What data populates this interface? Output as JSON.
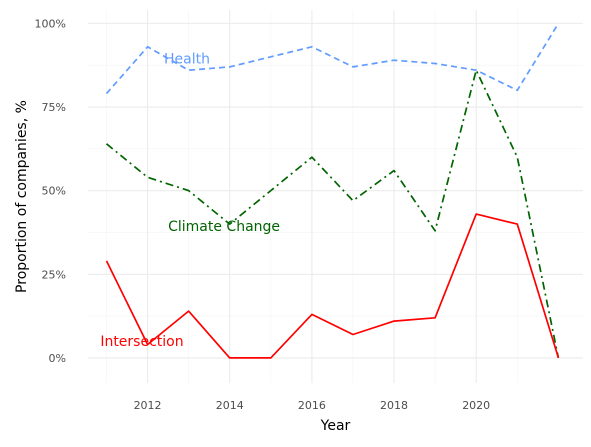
{
  "chart_data": {
    "type": "line",
    "title": "",
    "xlabel": "Year",
    "ylabel": "Proportion of companies, %",
    "xlim": [
      2010.55,
      2022.6
    ],
    "ylim": [
      -0.075,
      1.04
    ],
    "x_ticks": [
      2012,
      2014,
      2016,
      2018,
      2020
    ],
    "x_tick_labels": [
      "2012",
      "2014",
      "2016",
      "2018",
      "2020"
    ],
    "y_ticks": [
      0,
      0.25,
      0.5,
      0.75,
      1
    ],
    "y_tick_labels": [
      "0%",
      "25%",
      "50%",
      "75%",
      "100%"
    ],
    "grid": true,
    "legend": "none (direct labels on lines)",
    "x": [
      2011,
      2012,
      2013,
      2014,
      2015,
      2016,
      2017,
      2018,
      2019,
      2020,
      2021,
      2022
    ],
    "series": [
      {
        "name": "Health",
        "color": "#619CFF",
        "dash": "dashed",
        "values": [
          0.79,
          0.93,
          0.86,
          0.87,
          0.9,
          0.93,
          0.87,
          0.89,
          0.88,
          0.86,
          0.8,
          1.0
        ],
        "label_at": [
          2012.4,
          0.88
        ]
      },
      {
        "name": "Climate Change",
        "color": "#006400",
        "dash": "dashdot",
        "values": [
          0.64,
          0.54,
          0.5,
          0.4,
          0.5,
          0.6,
          0.47,
          0.56,
          0.38,
          0.86,
          0.6,
          0.0
        ],
        "label_at": [
          2012.5,
          0.38
        ]
      },
      {
        "name": "Intersection",
        "color": "#FF0000",
        "dash": "solid",
        "values": [
          0.29,
          0.04,
          0.14,
          0.0,
          0.0,
          0.13,
          0.07,
          0.11,
          0.12,
          0.43,
          0.4,
          0.0
        ],
        "label_at": [
          2010.85,
          0.035
        ]
      }
    ]
  }
}
